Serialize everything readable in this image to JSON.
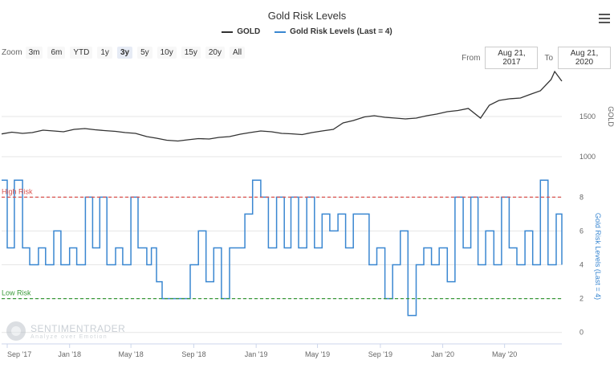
{
  "title": "Gold Risk Levels",
  "legend": [
    {
      "name": "GOLD",
      "color": "#333333"
    },
    {
      "name": "Gold Risk Levels (Last = 4)",
      "color": "#3a87d1"
    }
  ],
  "zoom": {
    "label": "Zoom",
    "options": [
      "3m",
      "6m",
      "YTD",
      "1y",
      "3y",
      "5y",
      "10y",
      "15y",
      "20y",
      "All"
    ],
    "selected": "3y"
  },
  "range": {
    "from_label": "From",
    "from_value": "Aug 21, 2017",
    "to_label": "To",
    "to_value": "Aug 21, 2020"
  },
  "watermark": {
    "name": "SENTIMENTRADER",
    "tagline": "Analyze over Emotion"
  },
  "icons": {
    "menu": "hamburger-menu-icon"
  },
  "chart_data": [
    {
      "type": "line",
      "series": [
        {
          "name": "GOLD",
          "color": "#333333",
          "values": [
            1283,
            1305,
            1290,
            1300,
            1330,
            1320,
            1310,
            1340,
            1350,
            1335,
            1325,
            1315,
            1300,
            1290,
            1250,
            1230,
            1205,
            1195,
            1210,
            1225,
            1220,
            1240,
            1250,
            1280,
            1300,
            1320,
            1310,
            1290,
            1285,
            1275,
            1300,
            1320,
            1340,
            1420,
            1450,
            1495,
            1510,
            1490,
            1480,
            1470,
            1480,
            1510,
            1530,
            1560,
            1575,
            1600,
            1480,
            1640,
            1700,
            1720,
            1730,
            1775,
            1820,
            1960,
            2060,
            1940
          ]
        }
      ],
      "x": [
        "2017-08-21",
        "2017-09-10",
        "2017-10-01",
        "2017-10-20",
        "2017-11-10",
        "2017-12-01",
        "2017-12-20",
        "2018-01-10",
        "2018-01-31",
        "2018-02-20",
        "2018-03-10",
        "2018-04-01",
        "2018-04-20",
        "2018-05-10",
        "2018-06-01",
        "2018-06-20",
        "2018-07-10",
        "2018-08-01",
        "2018-08-20",
        "2018-09-10",
        "2018-10-01",
        "2018-10-20",
        "2018-11-10",
        "2018-12-01",
        "2018-12-20",
        "2019-01-10",
        "2019-01-31",
        "2019-02-20",
        "2019-03-10",
        "2019-04-01",
        "2019-04-20",
        "2019-05-10",
        "2019-06-01",
        "2019-06-20",
        "2019-07-10",
        "2019-08-01",
        "2019-08-20",
        "2019-09-10",
        "2019-10-01",
        "2019-10-20",
        "2019-11-10",
        "2019-12-01",
        "2019-12-20",
        "2020-01-10",
        "2020-01-31",
        "2020-02-20",
        "2020-03-15",
        "2020-04-01",
        "2020-04-20",
        "2020-05-10",
        "2020-06-01",
        "2020-06-20",
        "2020-07-10",
        "2020-07-31",
        "2020-08-07",
        "2020-08-21"
      ],
      "yticks": [
        1000,
        1500
      ],
      "ylim": [
        850,
        2150
      ],
      "ylabel": "GOLD"
    },
    {
      "type": "line",
      "series": [
        {
          "name": "Gold Risk Levels (Last = 4)",
          "color": "#3a87d1",
          "values": [
            9,
            5,
            9,
            5,
            4,
            5,
            4,
            6,
            4,
            5,
            4,
            8,
            5,
            8,
            4,
            5,
            4,
            8,
            5,
            4,
            5,
            3,
            2,
            2,
            2,
            4,
            6,
            3,
            5,
            2,
            5,
            5,
            7,
            9,
            8,
            5,
            8,
            5,
            8,
            5,
            8,
            5,
            7,
            6,
            7,
            5,
            7,
            7,
            4,
            5,
            2,
            4,
            6,
            1,
            4,
            5,
            4,
            5,
            3,
            8,
            5,
            8,
            4,
            6,
            4,
            8,
            5,
            4,
            6,
            4,
            9,
            4,
            7,
            4
          ]
        }
      ],
      "x": [
        "2017-08-21",
        "2017-09-01",
        "2017-09-15",
        "2017-10-01",
        "2017-10-15",
        "2017-11-01",
        "2017-11-15",
        "2017-12-01",
        "2017-12-15",
        "2018-01-01",
        "2018-01-15",
        "2018-02-01",
        "2018-02-15",
        "2018-03-01",
        "2018-03-15",
        "2018-04-01",
        "2018-04-15",
        "2018-05-01",
        "2018-05-15",
        "2018-06-01",
        "2018-06-10",
        "2018-06-20",
        "2018-07-01",
        "2018-07-20",
        "2018-08-10",
        "2018-08-25",
        "2018-09-10",
        "2018-09-25",
        "2018-10-10",
        "2018-10-25",
        "2018-11-10",
        "2018-11-25",
        "2018-12-10",
        "2018-12-25",
        "2019-01-10",
        "2019-01-25",
        "2019-02-10",
        "2019-02-25",
        "2019-03-10",
        "2019-03-25",
        "2019-04-10",
        "2019-04-25",
        "2019-05-10",
        "2019-05-25",
        "2019-06-10",
        "2019-06-25",
        "2019-07-10",
        "2019-07-25",
        "2019-08-10",
        "2019-08-25",
        "2019-09-10",
        "2019-09-25",
        "2019-10-10",
        "2019-10-25",
        "2019-11-10",
        "2019-11-25",
        "2019-12-10",
        "2019-12-25",
        "2020-01-10",
        "2020-01-25",
        "2020-02-10",
        "2020-02-25",
        "2020-03-10",
        "2020-03-25",
        "2020-04-10",
        "2020-04-25",
        "2020-05-10",
        "2020-05-25",
        "2020-06-10",
        "2020-06-25",
        "2020-07-10",
        "2020-07-25",
        "2020-08-10",
        "2020-08-21"
      ],
      "yticks": [
        0,
        2,
        4,
        6,
        8
      ],
      "ylim": [
        -0.3,
        9.3
      ],
      "ylabel": "Gold Risk Levels (Last = 4)",
      "annotations": [
        {
          "label": "High Risk",
          "value": 8,
          "color": "#d9534f"
        },
        {
          "label": "Low Risk",
          "value": 2,
          "color": "#3a9a3a"
        }
      ]
    }
  ],
  "xaxis": {
    "ticks": [
      {
        "date": "2017-09-01",
        "label": "Sep '17"
      },
      {
        "date": "2018-01-01",
        "label": "Jan '18"
      },
      {
        "date": "2018-05-01",
        "label": "May '18"
      },
      {
        "date": "2018-09-01",
        "label": "Sep '18"
      },
      {
        "date": "2019-01-01",
        "label": "Jan '19"
      },
      {
        "date": "2019-05-01",
        "label": "May '19"
      },
      {
        "date": "2019-09-01",
        "label": "Sep '19"
      },
      {
        "date": "2020-01-01",
        "label": "Jan '20"
      },
      {
        "date": "2020-05-01",
        "label": "May '20"
      }
    ],
    "range": [
      "2017-08-21",
      "2020-08-21"
    ]
  }
}
